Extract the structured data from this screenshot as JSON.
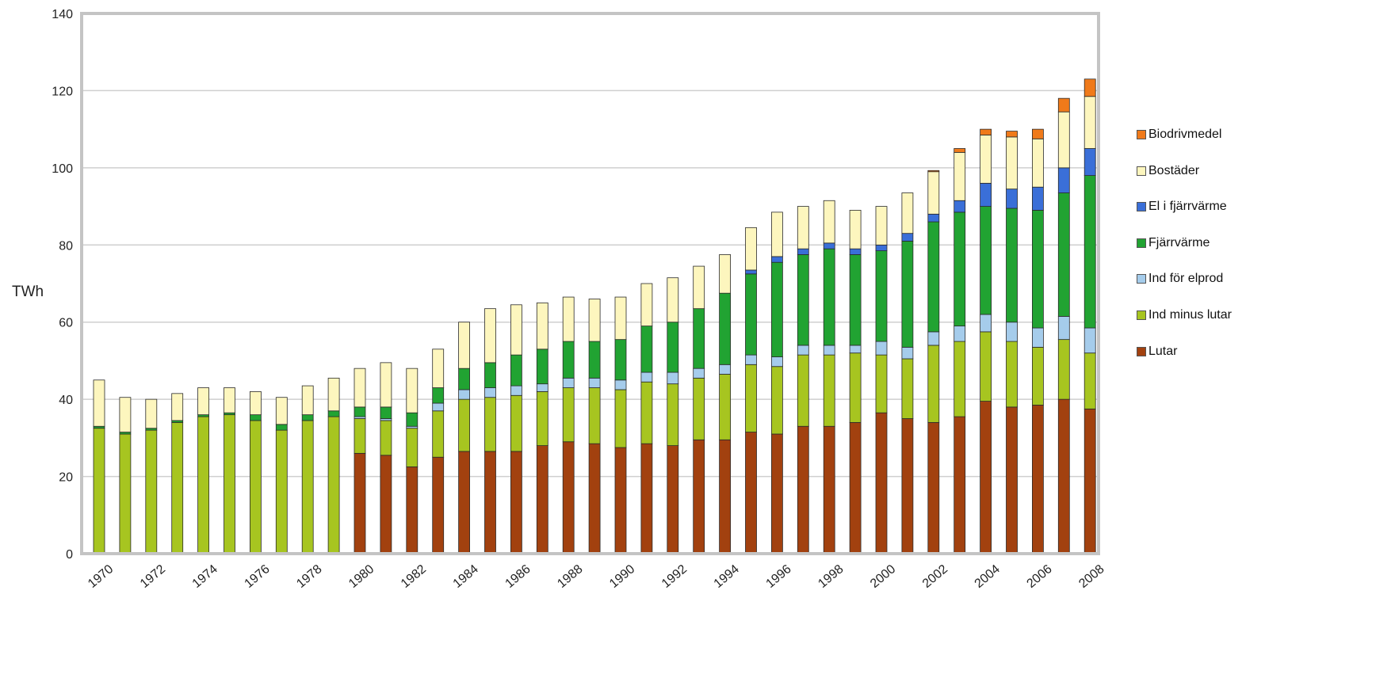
{
  "chart_data": {
    "type": "bar",
    "stacked": true,
    "title": "",
    "xlabel": "",
    "ylabel": "TWh",
    "ylim": [
      0,
      140
    ],
    "yticks": [
      0,
      20,
      40,
      60,
      80,
      100,
      120,
      140
    ],
    "xtick_labels": [
      "1970",
      "1972",
      "1974",
      "1976",
      "1978",
      "1980",
      "1982",
      "1984",
      "1986",
      "1988",
      "1990",
      "1992",
      "1994",
      "1996",
      "1998",
      "2000",
      "2002",
      "2004",
      "2006",
      "2008"
    ],
    "grid": true,
    "legend_position": "right",
    "categories": [
      1970,
      1971,
      1972,
      1973,
      1974,
      1975,
      1976,
      1977,
      1978,
      1979,
      1980,
      1981,
      1982,
      1983,
      1984,
      1985,
      1986,
      1987,
      1988,
      1989,
      1990,
      1991,
      1992,
      1993,
      1994,
      1995,
      1996,
      1997,
      1998,
      1999,
      2000,
      2001,
      2002,
      2003,
      2004,
      2005,
      2006,
      2007,
      2008
    ],
    "series": [
      {
        "name": "Lutar",
        "color": "#A2410F",
        "values": [
          0,
          0,
          0,
          0,
          0,
          0,
          0,
          0,
          0,
          0,
          26,
          25.5,
          22.5,
          25,
          26.5,
          26.5,
          26.5,
          28,
          29,
          28.5,
          27.5,
          28.5,
          28,
          29.5,
          29.5,
          31.5,
          31,
          33,
          33,
          34,
          36.5,
          35,
          34,
          35.5,
          39.5,
          38,
          38.5,
          40,
          37.5
        ]
      },
      {
        "name": "Ind minus lutar",
        "color": "#A7C520",
        "values": [
          32.5,
          31,
          32,
          34,
          35.5,
          36,
          34.5,
          32,
          34.5,
          35.5,
          9,
          9,
          10,
          12,
          13.5,
          14,
          14.5,
          14,
          14,
          14.5,
          15,
          16,
          16,
          16,
          17,
          17.5,
          17.5,
          18.5,
          18.5,
          18,
          15,
          15.5,
          20,
          19.5,
          18,
          17,
          15,
          15.5,
          14.5
        ]
      },
      {
        "name": "Ind för elprod",
        "color": "#A5CCEB",
        "values": [
          0,
          0,
          0,
          0,
          0,
          0,
          0,
          0,
          0,
          0,
          0.5,
          0.5,
          0.5,
          2,
          2.5,
          2.5,
          2.5,
          2,
          2.5,
          2.5,
          2.5,
          2.5,
          3,
          2.5,
          2.5,
          2.5,
          2.5,
          2.5,
          2.5,
          2,
          3.5,
          3,
          3.5,
          4,
          4.5,
          5,
          5,
          6,
          6.5
        ]
      },
      {
        "name": "Fjärrvärme",
        "color": "#21A332",
        "values": [
          0.5,
          0.5,
          0.5,
          0.5,
          0.5,
          0.5,
          1.5,
          1.5,
          1.5,
          1.5,
          2.5,
          3,
          3.5,
          4,
          5.5,
          6.5,
          8,
          9,
          9.5,
          9.5,
          10.5,
          12,
          13,
          15.5,
          18.5,
          21,
          24.5,
          23.5,
          25,
          23.5,
          23.5,
          27.5,
          28.5,
          29.5,
          28,
          29.5,
          30.5,
          32,
          39.5
        ]
      },
      {
        "name": "El i fjärrvärme",
        "color": "#3A6FD8",
        "values": [
          0,
          0,
          0,
          0,
          0,
          0,
          0,
          0,
          0,
          0,
          0,
          0,
          0,
          0,
          0,
          0,
          0,
          0,
          0,
          0,
          0,
          0,
          0,
          0,
          0,
          1,
          1.5,
          1.5,
          1.5,
          1.5,
          1.5,
          2,
          2,
          3,
          6,
          5,
          6,
          6.5,
          7
        ]
      },
      {
        "name": "Bostäder",
        "color": "#FDF6BE",
        "values": [
          12,
          9,
          7.5,
          7,
          7,
          6.5,
          6,
          7,
          7.5,
          8.5,
          10,
          11.5,
          11.5,
          10,
          12,
          14,
          13,
          12,
          11.5,
          11,
          11,
          11,
          11.5,
          11,
          10,
          11,
          11.5,
          11,
          11,
          10,
          10,
          10.5,
          11,
          12.5,
          12.5,
          13.5,
          12.5,
          14.5,
          13.5
        ]
      },
      {
        "name": "Biodrivmedel",
        "color": "#F07A1A",
        "values": [
          0,
          0,
          0,
          0,
          0,
          0,
          0,
          0,
          0,
          0,
          0,
          0,
          0,
          0,
          0,
          0,
          0,
          0,
          0,
          0,
          0,
          0,
          0,
          0,
          0,
          0,
          0,
          0,
          0,
          0,
          0,
          0,
          0.3,
          1,
          1.5,
          1.5,
          2.5,
          3.5,
          4.5
        ]
      }
    ]
  }
}
